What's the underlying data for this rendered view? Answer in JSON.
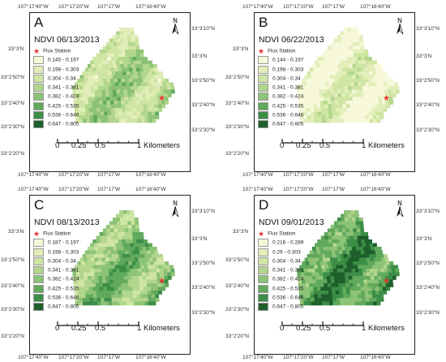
{
  "legend_colors": [
    "#f7f8d9",
    "#e2eeba",
    "#cfe5a3",
    "#b2d68c",
    "#8dc376",
    "#61a95d",
    "#3c8e47",
    "#1e5f2c"
  ],
  "panels": [
    {
      "letter": "A",
      "title": "NDVI 06/13/2013",
      "flux_label": "Flux Station",
      "legend": [
        "0.145 - 0.197",
        "0.198 - 0.303",
        "0.304 - 0.34",
        "0.341 - 0.381",
        "0.382 - 0.424",
        "0.425 - 0.535",
        "0.536 - 0.646",
        "0.647 - 0.805"
      ],
      "top_lon": [
        "107°17'40\"W",
        "107°17'20\"W",
        "107°17'W",
        "107°16'40\"W"
      ],
      "bottom_lon": [
        "107°17'40\"W",
        "107°17'20\"W",
        "107°17'W",
        "107°16'40\"W"
      ],
      "left_lat": [
        "33°3'N",
        "33°2'50\"N",
        "33°2'40\"N",
        "33°2'30\"N",
        "33°2'20\"N"
      ],
      "right_lat": [
        "33°3'10\"N",
        "33°3'N",
        "33°2'50\"N",
        "33°2'40\"N",
        "33°2'30\"N"
      ],
      "scale": [
        "0",
        "0.25",
        "0.5",
        "1",
        "Kilometers"
      ],
      "greenness": 0.42
    },
    {
      "letter": "B",
      "title": "NDVI 06/22/2013",
      "flux_label": "Flux Station",
      "legend": [
        "0.144 - 0.197",
        "0.198 - 0.303",
        "0.304 - 0.34",
        "0.341 - 0.381",
        "0.382 - 0.424",
        "0.425 - 0.535",
        "0.536 - 0.646",
        "0.647 - 0.805"
      ],
      "top_lon": [
        "107°17'40\"W",
        "107°17'20\"W",
        "107°17'W",
        "107°16'40\"W"
      ],
      "bottom_lon": [
        "107°17'40\"W",
        "107°17'20\"W",
        "107°17'W",
        "107°16'40\"W"
      ],
      "left_lat": [
        "33°3'N",
        "33°2'50\"N",
        "33°2'40\"N",
        "33°2'30\"N",
        "33°2'20\"N"
      ],
      "right_lat": [
        "33°3'10\"N",
        "33°3'N",
        "33°2'50\"N",
        "33°2'40\"N",
        "33°2'30\"N"
      ],
      "scale": [
        "0",
        "0.25",
        "0.5",
        "1",
        "Kilometers"
      ],
      "greenness": 0.08
    },
    {
      "letter": "C",
      "title": "NDVI 08/13/2013",
      "flux_label": "Flux Station",
      "legend": [
        "0.187 - 0.197",
        "0.198 - 0.303",
        "0.304 - 0.34",
        "0.341 - 0.381",
        "0.382 - 0.424",
        "0.425 - 0.535",
        "0.536 - 0.646",
        "0.647 - 0.805"
      ],
      "top_lon": [
        "107°17'40\"W",
        "107°17'20\"W",
        "107°17'W",
        "107°16'40\"W"
      ],
      "bottom_lon": [
        "107°17'40\"W",
        "107°17'20\"W",
        "107°17'W",
        "107°16'40\"W"
      ],
      "left_lat": [
        "33°3'N",
        "33°2'50\"N",
        "33°2'40\"N",
        "33°2'30\"N",
        "33°2'20\"N"
      ],
      "right_lat": [
        "33°3'10\"N",
        "33°3'N",
        "33°2'50\"N",
        "33°2'40\"N",
        "33°2'30\"N"
      ],
      "scale": [
        "0",
        "0.25",
        "0.5",
        "1",
        "Kilometers"
      ],
      "greenness": 0.62
    },
    {
      "letter": "D",
      "title": "NDVI 09/01/2013",
      "flux_label": "Flux Station",
      "legend": [
        "0.216 - 0.289",
        "0.29 - 0.303",
        "0.304 - 0.34",
        "0.341 - 0.381",
        "0.382 - 0.424",
        "0.425 - 0.535",
        "0.536 - 0.646",
        "0.647 - 0.805"
      ],
      "top_lon": [
        "107°17'40\"W",
        "107°17'20\"W",
        "107°17'W",
        "107°16'40\"W"
      ],
      "bottom_lon": [
        "107°17'40\"W",
        "107°17'20\"W",
        "107°17'W",
        "107°16'40\"W"
      ],
      "left_lat": [
        "33°3'N",
        "33°2'50\"N",
        "33°2'40\"N",
        "33°2'30\"N",
        "33°2'20\"N"
      ],
      "right_lat": [
        "33°3'10\"N",
        "33°3'N",
        "33°2'50\"N",
        "33°2'40\"N",
        "33°2'30\"N"
      ],
      "scale": [
        "0",
        "0.25",
        "0.5",
        "1",
        "Kilometers"
      ],
      "greenness": 0.86
    }
  ]
}
